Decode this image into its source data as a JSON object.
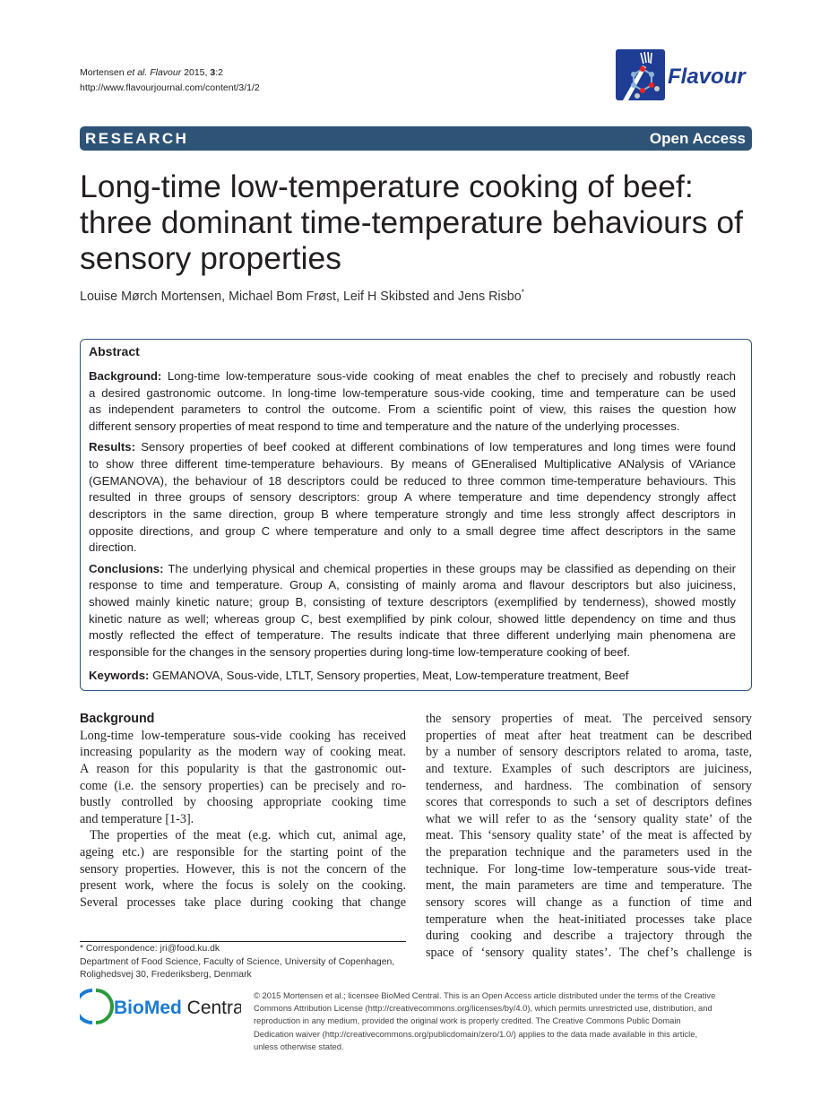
{
  "header": {
    "citation_prefix": "Mortensen ",
    "citation_etal": "et al.",
    "citation_journal": " Flavour",
    "citation_year": " 2015, ",
    "citation_vol": "3",
    "citation_num": ":2",
    "url": "http://www.flavourjournal.com/content/3/1/2"
  },
  "logo": {
    "text": "Flavour",
    "color": "#1f3d94"
  },
  "bar": {
    "type": "RESEARCH",
    "access": "Open Access",
    "color": "#2e5377"
  },
  "title": [
    "Long-time low-temperature cooking of beef:",
    "three dominant time-temperature behaviours of",
    "sensory properties"
  ],
  "authors": {
    "names": "Louise Mørch Mortensen, Michael Bom Frøst, Leif H Skibsted and Jens Risbo",
    "mark": "*"
  },
  "abstract": {
    "heading": "Abstract",
    "sections": [
      {
        "label": "Background:",
        "lines": [
          " Long-time low-temperature sous-vide cooking of meat enables the chef to precisely and robustly reach",
          "a desired gastronomic outcome. In long-time low-temperature sous-vide cooking, time and temperature can be used",
          "as independent parameters to control the outcome. From a scientific point of view, this raises the question how",
          "different sensory properties of meat respond to time and temperature and the nature of the underlying processes."
        ]
      },
      {
        "label": "Results:",
        "lines": [
          " Sensory properties of beef cooked at different combinations of low temperatures and long times were found",
          "to show three different time-temperature behaviours. By means of GEneralised Multiplicative ANalysis of VAriance",
          "(GEMANOVA), the behaviour of 18 descriptors could be reduced to three common time-temperature behaviours. This",
          "resulted in three groups of sensory descriptors: group A where temperature and time dependency strongly affect",
          "descriptors in the same direction, group B where temperature strongly and time less strongly affect descriptors in",
          "opposite directions, and group C where temperature and only to a small degree time affect descriptors in the same",
          "direction."
        ]
      },
      {
        "label": "Conclusions:",
        "lines": [
          " The underlying physical and chemical properties in these groups may be classified as depending on their",
          "response to time and temperature. Group A, consisting of mainly aroma and flavour descriptors but also juiciness,",
          "showed mainly kinetic nature; group B, consisting of texture descriptors (exemplified by tenderness), showed mostly",
          "kinetic nature as well; whereas group C, best exemplified by pink colour, showed little dependency on time and thus",
          "mostly reflected the effect of temperature. The results indicate that three different underlying main phenomena are",
          "responsible for the changes in the sensory properties during long-time low-temperature cooking of beef."
        ]
      }
    ],
    "keywords_label": "Keywords:",
    "keywords": " GEMANOVA, Sous-vide, LTLT, Sensory properties, Meat, Low-temperature treatment, Beef"
  },
  "body": {
    "heading": "Background",
    "left": [
      {
        "lines": [
          "Long-time low-temperature sous-vide cooking has received",
          "increasing popularity as the modern way of cooking meat.",
          "A reason for this popularity is that the gastronomic out-",
          "come (i.e. the sensory properties) can be precisely and ro-",
          "bustly controlled by choosing appropriate cooking time",
          "and temperature [1-3]."
        ],
        "ends": true
      },
      {
        "lines": [
          "The properties of the meat (e.g. which cut, animal age,",
          "ageing etc.) are responsible for the starting point of the",
          "sensory properties. However, this is not the concern of the",
          "present work, where the focus is solely on the cooking.",
          "Several processes take place during cooking that change"
        ],
        "ends": false,
        "indent": true
      }
    ],
    "right": [
      {
        "lines": [
          "the sensory properties of meat. The perceived sensory",
          "properties of meat after heat treatment can be described",
          "by a number of sensory descriptors related to aroma, taste,",
          "and texture. Examples of such descriptors are juiciness,",
          "tenderness, and hardness. The combination of sensory",
          "scores that corresponds to such a set of descriptors defines",
          "what we will refer to as the ‘sensory quality state’ of the",
          "meat. This ‘sensory quality state’ of the meat is affected by",
          "the preparation technique and the parameters used in the",
          "technique. For long-time low-temperature sous-vide treat-",
          "ment, the main parameters are time and temperature. The",
          "sensory scores will change as a function of time and",
          "temperature when the heat-initiated processes take place",
          "during cooking and describe a trajectory through the",
          "space of ‘sensory quality states’. The chef’s challenge is"
        ],
        "ends": false
      }
    ]
  },
  "footnote": {
    "correspondence": "* Correspondence: jri@food.ku.dk",
    "affiliation_1": "Department of Food Science, Faculty of Science, University of Copenhagen,",
    "affiliation_2": "Rolighedsvej 30, Frederiksberg, Denmark"
  },
  "publisher": {
    "bio": "BioMed",
    "central": " Central"
  },
  "license": [
    "© 2015 Mortensen et al.; licensee BioMed Central. This is an Open Access article distributed under the terms of the Creative",
    "Commons Attribution License (http://creativecommons.org/licenses/by/4.0), which permits unrestricted use, distribution, and",
    "reproduction in any medium, provided the original work is properly credited. The Creative Commons Public Domain",
    "Dedication waiver (http://creativecommons.org/publicdomain/zero/1.0/) applies to the data made available in this article,",
    "unless otherwise stated."
  ]
}
